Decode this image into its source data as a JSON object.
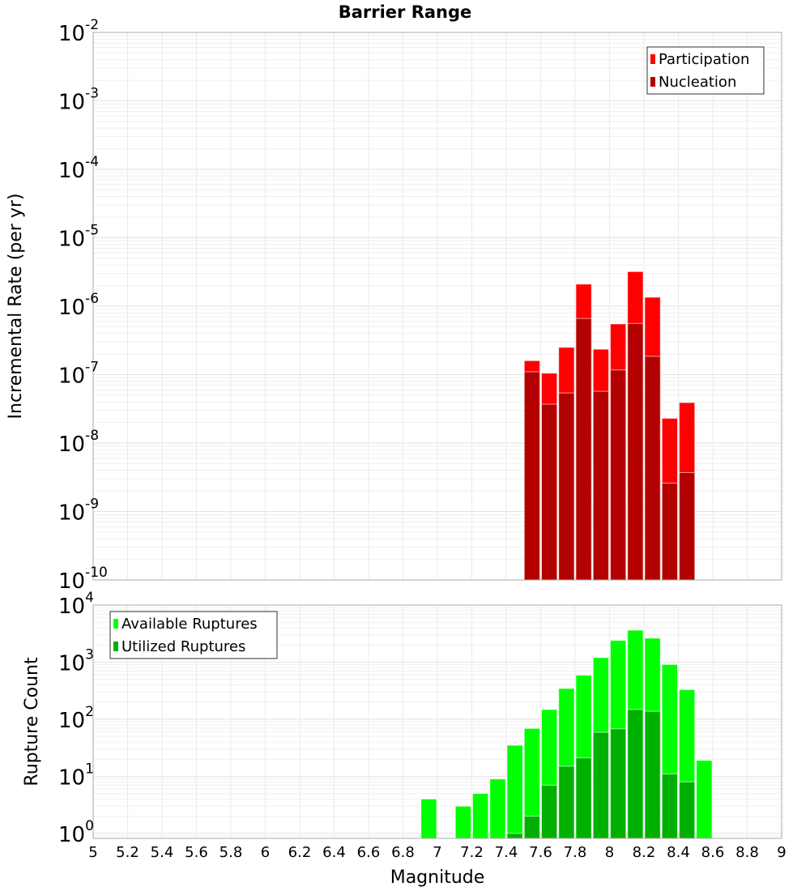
{
  "chart_data": [
    {
      "type": "bar",
      "title": "Barrier Range",
      "xlabel": "Magnitude",
      "ylabel": "Incremental Rate (per yr)",
      "yscale": "log",
      "xlim": [
        5,
        9
      ],
      "ylim": [
        1e-10,
        0.01
      ],
      "y_tick_exponents": [
        -2,
        -3,
        -4,
        -5,
        -6,
        -7,
        -8,
        -9,
        -10
      ],
      "legend_placement": "top-right",
      "bin_width": 0.1,
      "x": [
        7.55,
        7.65,
        7.75,
        7.85,
        7.95,
        8.05,
        8.15,
        8.25,
        8.35,
        8.45
      ],
      "series": [
        {
          "name": "Participation",
          "color": "#ff0000",
          "values": [
            1.6e-07,
            1.05e-07,
            2.5e-07,
            2.1e-06,
            2.35e-07,
            5.5e-07,
            3.2e-06,
            1.35e-06,
            2.3e-08,
            3.9e-08
          ]
        },
        {
          "name": "Nucleation",
          "color": "#b30000",
          "values": [
            1.1e-07,
            3.7e-08,
            5.4e-08,
            6.6e-07,
            5.7e-08,
            1.17e-07,
            5.6e-07,
            1.85e-07,
            2.6e-09,
            3.7e-09
          ]
        }
      ]
    },
    {
      "type": "bar",
      "xlabel": "Magnitude",
      "ylabel": "Rupture Count",
      "yscale": "log",
      "xlim": [
        5,
        9
      ],
      "ylim": [
        0.82,
        10000
      ],
      "y_tick_exponents": [
        4,
        3,
        2,
        1,
        0
      ],
      "x_ticks": [
        "5",
        "5.2",
        "5.4",
        "5.6",
        "5.8",
        "6",
        "6.2",
        "6.4",
        "6.6",
        "6.8",
        "7",
        "7.2",
        "7.4",
        "7.6",
        "7.8",
        "8",
        "8.2",
        "8.4",
        "8.6",
        "8.8",
        "9"
      ],
      "legend_placement": "top-left",
      "bin_width": 0.1,
      "x": [
        6.95,
        7.15,
        7.25,
        7.35,
        7.45,
        7.55,
        7.65,
        7.75,
        7.85,
        7.95,
        8.05,
        8.15,
        8.25,
        8.35,
        8.45,
        8.55
      ],
      "series": [
        {
          "name": "Available Ruptures",
          "color": "#00ff00",
          "values": [
            4,
            3,
            5,
            9,
            35,
            69,
            148,
            346,
            590,
            1200,
            2400,
            3630,
            2630,
            910,
            330,
            19
          ]
        },
        {
          "name": "Utilized Ruptures",
          "color": "#00b000",
          "values": [
            0,
            0,
            0,
            0,
            1,
            2,
            7,
            15,
            21,
            59,
            68,
            148,
            138,
            11,
            8,
            0
          ]
        }
      ]
    }
  ]
}
